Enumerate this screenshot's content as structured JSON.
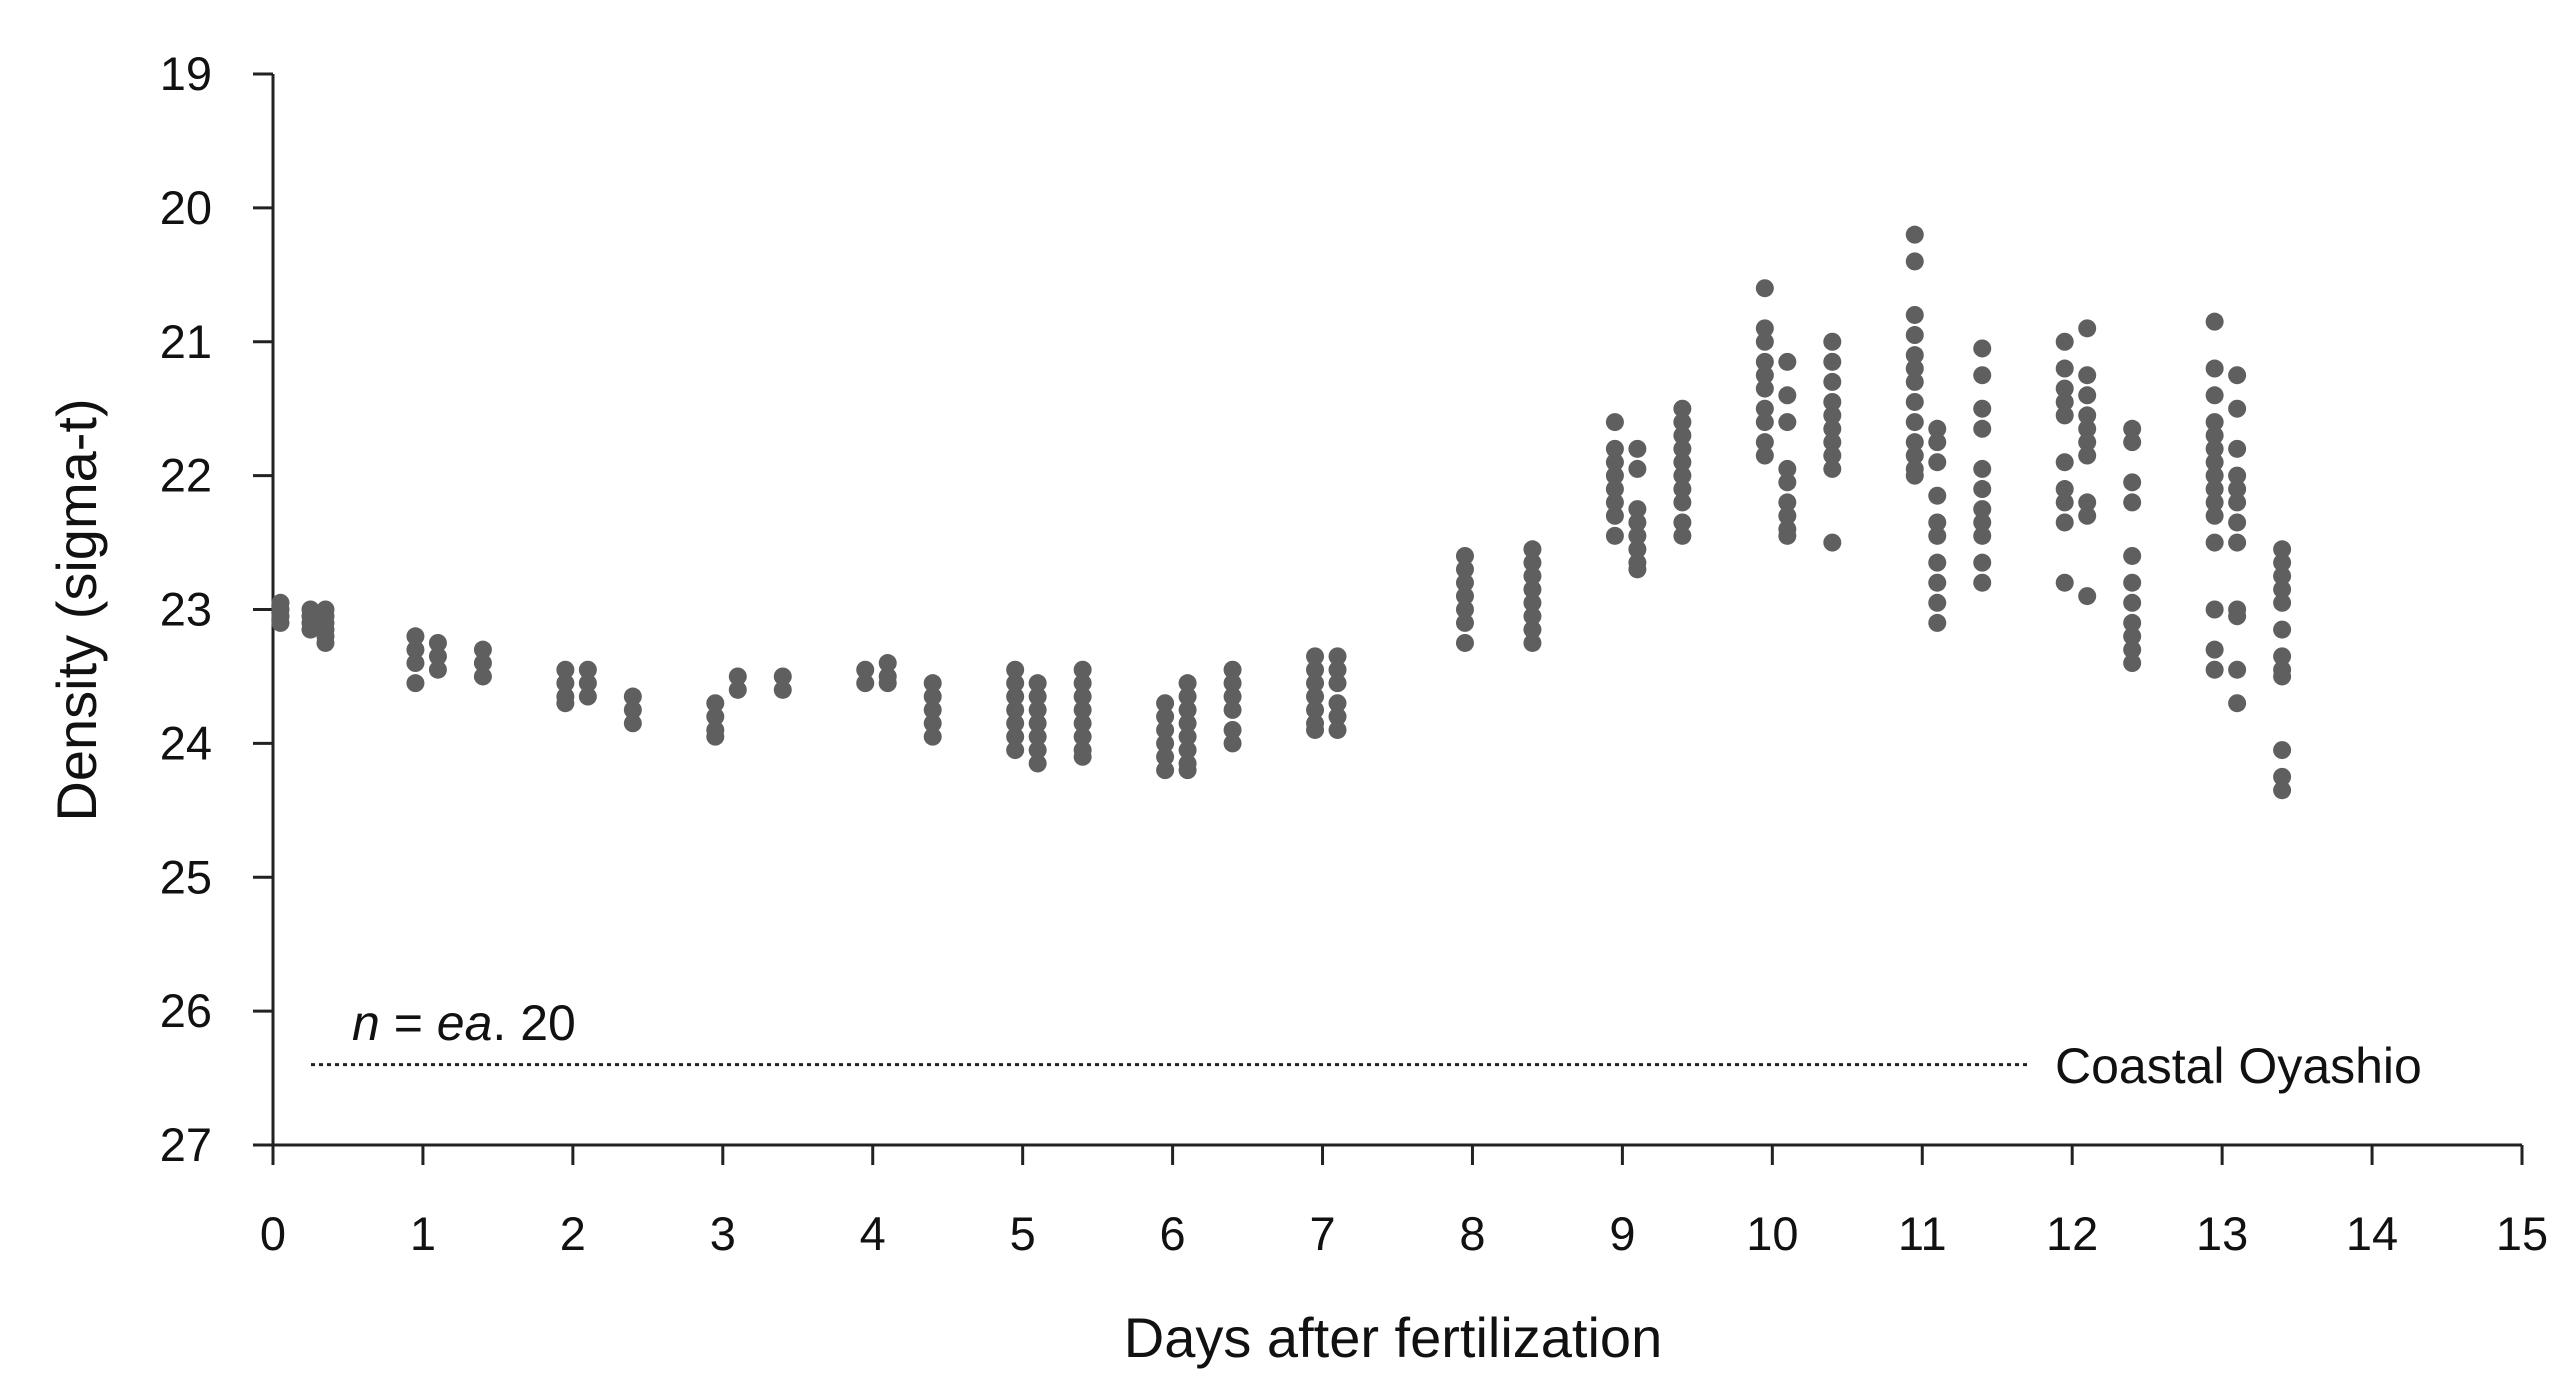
{
  "chart_data": {
    "type": "scatter",
    "title": "",
    "xlabel": "Days after fertilization",
    "ylabel": "Density (sigma-t)",
    "xlim": [
      0,
      15
    ],
    "ylim": [
      19,
      27
    ],
    "y_inverted": true,
    "x_ticks": [
      "0",
      "1",
      "2",
      "3",
      "4",
      "5",
      "6",
      "7",
      "8",
      "9",
      "10",
      "11",
      "12",
      "13",
      "14",
      "15"
    ],
    "y_ticks": [
      "19",
      "20",
      "21",
      "22",
      "23",
      "24",
      "25",
      "26",
      "27"
    ],
    "grid": false,
    "marker_color": "#5f5f5f",
    "annotation": {
      "n": "n",
      "eq": " = ",
      "ea": "ea",
      "rest": ". 20"
    },
    "reference_line": {
      "label": "Coastal Oyashio",
      "y": 26.4,
      "style": "dotted"
    },
    "groups": [
      {
        "x": 0.05,
        "values": [
          22.95,
          23.0,
          23.05,
          23.1
        ]
      },
      {
        "x": 0.25,
        "values": [
          23.0,
          23.05,
          23.1,
          23.15
        ]
      },
      {
        "x": 0.35,
        "values": [
          23.0,
          23.05,
          23.1,
          23.15,
          23.2,
          23.25
        ]
      },
      {
        "x": 0.95,
        "values": [
          23.2,
          23.3,
          23.4,
          23.55
        ]
      },
      {
        "x": 1.1,
        "values": [
          23.25,
          23.35,
          23.45
        ]
      },
      {
        "x": 1.4,
        "values": [
          23.3,
          23.4,
          23.5
        ]
      },
      {
        "x": 1.95,
        "values": [
          23.45,
          23.55,
          23.65,
          23.7
        ]
      },
      {
        "x": 2.1,
        "values": [
          23.45,
          23.55,
          23.65
        ]
      },
      {
        "x": 2.4,
        "values": [
          23.65,
          23.75,
          23.85
        ]
      },
      {
        "x": 2.95,
        "values": [
          23.7,
          23.8,
          23.9,
          23.95
        ]
      },
      {
        "x": 3.1,
        "values": [
          23.5,
          23.6
        ]
      },
      {
        "x": 3.4,
        "values": [
          23.5,
          23.6
        ]
      },
      {
        "x": 3.95,
        "values": [
          23.45,
          23.55
        ]
      },
      {
        "x": 4.1,
        "values": [
          23.4,
          23.5,
          23.55
        ]
      },
      {
        "x": 4.4,
        "values": [
          23.55,
          23.65,
          23.75,
          23.85,
          23.95
        ]
      },
      {
        "x": 4.95,
        "values": [
          23.45,
          23.55,
          23.65,
          23.75,
          23.85,
          23.95,
          24.05
        ]
      },
      {
        "x": 5.1,
        "values": [
          23.55,
          23.65,
          23.75,
          23.85,
          23.95,
          24.05,
          24.15
        ]
      },
      {
        "x": 5.4,
        "values": [
          23.45,
          23.55,
          23.65,
          23.75,
          23.85,
          23.95,
          24.05,
          24.1
        ]
      },
      {
        "x": 5.95,
        "values": [
          23.7,
          23.8,
          23.9,
          24.0,
          24.1,
          24.2
        ]
      },
      {
        "x": 6.1,
        "values": [
          23.55,
          23.65,
          23.75,
          23.85,
          23.95,
          24.05,
          24.15,
          24.2
        ]
      },
      {
        "x": 6.4,
        "values": [
          23.45,
          23.55,
          23.65,
          23.75,
          23.9,
          24.0
        ]
      },
      {
        "x": 6.95,
        "values": [
          23.35,
          23.45,
          23.55,
          23.65,
          23.75,
          23.85,
          23.9
        ]
      },
      {
        "x": 7.1,
        "values": [
          23.35,
          23.45,
          23.55,
          23.7,
          23.8,
          23.9
        ]
      },
      {
        "x": 7.95,
        "values": [
          22.6,
          22.7,
          22.8,
          22.9,
          23.0,
          23.1,
          23.25
        ]
      },
      {
        "x": 8.4,
        "values": [
          22.55,
          22.65,
          22.75,
          22.85,
          22.95,
          23.05,
          23.15,
          23.25
        ]
      },
      {
        "x": 8.95,
        "values": [
          21.6,
          21.8,
          21.9,
          22.0,
          22.1,
          22.2,
          22.3,
          22.45
        ]
      },
      {
        "x": 9.1,
        "values": [
          21.8,
          21.95,
          22.25,
          22.35,
          22.45,
          22.55,
          22.65,
          22.7
        ]
      },
      {
        "x": 9.4,
        "values": [
          21.5,
          21.6,
          21.7,
          21.8,
          21.9,
          22.0,
          22.1,
          22.2,
          22.35,
          22.45
        ]
      },
      {
        "x": 9.95,
        "values": [
          20.6,
          20.9,
          21.0,
          21.15,
          21.25,
          21.35,
          21.5,
          21.6,
          21.75,
          21.85
        ]
      },
      {
        "x": 10.1,
        "values": [
          21.15,
          21.4,
          21.6,
          21.95,
          22.05,
          22.2,
          22.3,
          22.4,
          22.45
        ]
      },
      {
        "x": 10.4,
        "values": [
          21.0,
          21.15,
          21.3,
          21.45,
          21.55,
          21.65,
          21.75,
          21.85,
          21.95,
          22.5
        ]
      },
      {
        "x": 10.95,
        "values": [
          20.2,
          20.4,
          20.8,
          20.95,
          21.1,
          21.2,
          21.3,
          21.45,
          21.6,
          21.75,
          21.85,
          21.95,
          22.0
        ]
      },
      {
        "x": 11.1,
        "values": [
          21.65,
          21.75,
          21.9,
          22.15,
          22.35,
          22.45,
          22.65,
          22.8,
          22.95,
          23.1
        ]
      },
      {
        "x": 11.4,
        "values": [
          21.05,
          21.25,
          21.5,
          21.65,
          21.95,
          22.1,
          22.25,
          22.35,
          22.45,
          22.65,
          22.8
        ]
      },
      {
        "x": 11.95,
        "values": [
          21.0,
          21.2,
          21.35,
          21.45,
          21.55,
          21.9,
          22.1,
          22.2,
          22.35,
          22.8
        ]
      },
      {
        "x": 12.1,
        "values": [
          20.9,
          21.25,
          21.4,
          21.55,
          21.65,
          21.75,
          21.85,
          22.2,
          22.3,
          22.9
        ]
      },
      {
        "x": 12.4,
        "values": [
          21.65,
          21.75,
          22.05,
          22.2,
          22.6,
          22.8,
          22.95,
          23.1,
          23.2,
          23.3,
          23.4
        ]
      },
      {
        "x": 12.95,
        "values": [
          20.85,
          21.2,
          21.4,
          21.6,
          21.7,
          21.8,
          21.9,
          22.0,
          22.1,
          22.2,
          22.3,
          22.5,
          23.0,
          23.3,
          23.45
        ]
      },
      {
        "x": 13.1,
        "values": [
          21.25,
          21.5,
          21.8,
          22.0,
          22.1,
          22.2,
          22.35,
          22.5,
          23.0,
          23.05,
          23.45,
          23.7
        ]
      },
      {
        "x": 13.4,
        "values": [
          22.55,
          22.65,
          22.75,
          22.85,
          22.95,
          23.15,
          23.35,
          23.45,
          23.5,
          24.05,
          24.25,
          24.35
        ]
      }
    ]
  }
}
